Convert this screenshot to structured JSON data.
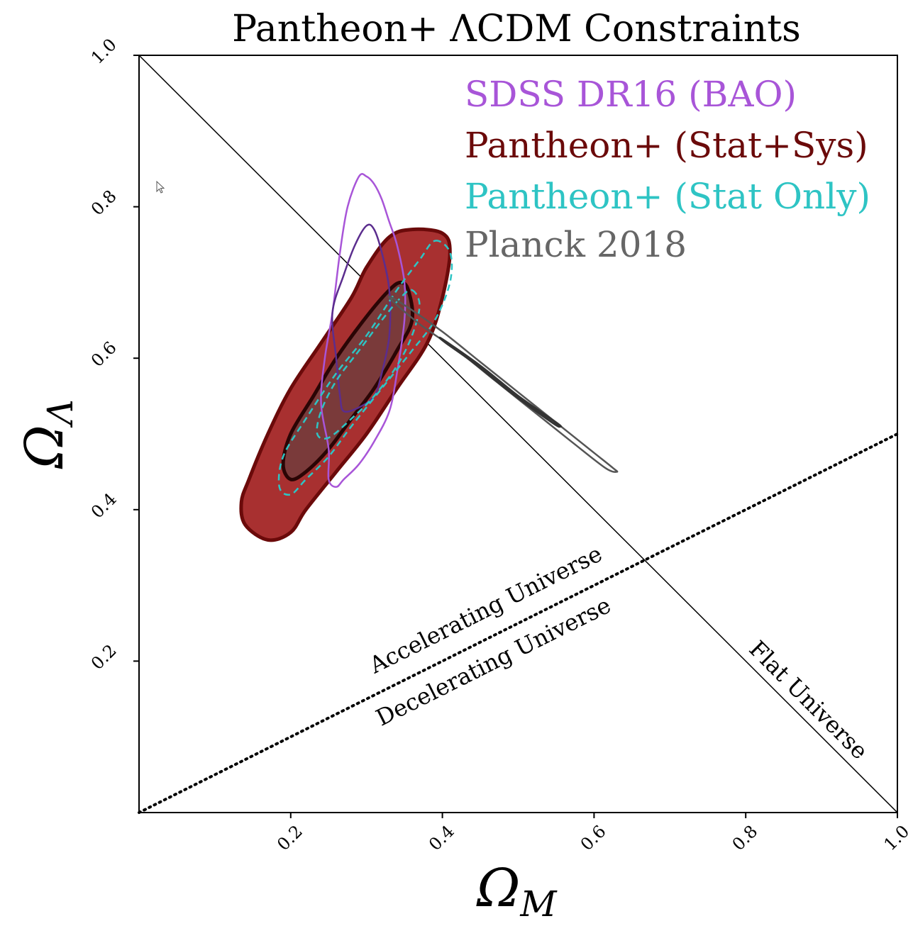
{
  "chart_data": {
    "type": "contour",
    "title": "Pantheon+ ΛCDM Constraints",
    "xlabel": "Ω",
    "xlabel_sub": "M",
    "ylabel": "Ω",
    "ylabel_sub": "Λ",
    "xlim": [
      0.0,
      1.0
    ],
    "ylim": [
      0.0,
      1.0
    ],
    "x_ticks": [
      "0.2",
      "0.4",
      "0.6",
      "0.8",
      "1.0"
    ],
    "y_ticks": [
      "0.2",
      "0.4",
      "0.6",
      "0.8",
      "1.0"
    ],
    "x_tick_values": [
      0.2,
      0.4,
      0.6,
      0.8,
      1.0
    ],
    "y_tick_values": [
      0.2,
      0.4,
      0.6,
      0.8,
      1.0
    ],
    "grid": false,
    "legend_position": "top-right",
    "series": [
      {
        "name": "SDSS DR16 (BAO)",
        "color": "#a855d8",
        "inner_color": "#5b2d8e",
        "style": "solid",
        "filled": false,
        "outer": [
          [
            0.29,
            0.84
          ],
          [
            0.3,
            0.84
          ],
          [
            0.31,
            0.83
          ],
          [
            0.32,
            0.81
          ],
          [
            0.33,
            0.78
          ],
          [
            0.34,
            0.75
          ],
          [
            0.35,
            0.7
          ],
          [
            0.35,
            0.65
          ],
          [
            0.34,
            0.58
          ],
          [
            0.33,
            0.53
          ],
          [
            0.31,
            0.49
          ],
          [
            0.29,
            0.46
          ],
          [
            0.27,
            0.44
          ],
          [
            0.26,
            0.43
          ],
          [
            0.25,
            0.44
          ],
          [
            0.25,
            0.48
          ],
          [
            0.24,
            0.54
          ],
          [
            0.245,
            0.6
          ],
          [
            0.255,
            0.66
          ],
          [
            0.265,
            0.74
          ],
          [
            0.275,
            0.8
          ]
        ],
        "inner": [
          [
            0.3,
            0.775
          ],
          [
            0.31,
            0.77
          ],
          [
            0.32,
            0.74
          ],
          [
            0.33,
            0.69
          ],
          [
            0.33,
            0.63
          ],
          [
            0.32,
            0.58
          ],
          [
            0.31,
            0.55
          ],
          [
            0.29,
            0.535
          ],
          [
            0.27,
            0.53
          ],
          [
            0.265,
            0.55
          ],
          [
            0.26,
            0.6
          ],
          [
            0.255,
            0.66
          ],
          [
            0.27,
            0.71
          ],
          [
            0.285,
            0.75
          ]
        ]
      },
      {
        "name": "Pantheon+ (Stat+Sys)",
        "color": "#6b0a0a",
        "fill_color": "#a83030",
        "inner_fill_color": "#7a3a3a",
        "style": "solid",
        "filled": true,
        "outer": [
          [
            0.33,
            0.76
          ],
          [
            0.36,
            0.77
          ],
          [
            0.4,
            0.765
          ],
          [
            0.41,
            0.74
          ],
          [
            0.4,
            0.68
          ],
          [
            0.38,
            0.62
          ],
          [
            0.34,
            0.56
          ],
          [
            0.3,
            0.5
          ],
          [
            0.26,
            0.45
          ],
          [
            0.22,
            0.4
          ],
          [
            0.2,
            0.37
          ],
          [
            0.17,
            0.36
          ],
          [
            0.14,
            0.38
          ],
          [
            0.135,
            0.41
          ],
          [
            0.145,
            0.44
          ],
          [
            0.17,
            0.5
          ],
          [
            0.2,
            0.56
          ],
          [
            0.24,
            0.62
          ],
          [
            0.28,
            0.68
          ],
          [
            0.3,
            0.72
          ]
        ],
        "inner": [
          [
            0.345,
            0.7
          ],
          [
            0.355,
            0.69
          ],
          [
            0.36,
            0.65
          ],
          [
            0.34,
            0.61
          ],
          [
            0.31,
            0.56
          ],
          [
            0.28,
            0.52
          ],
          [
            0.25,
            0.48
          ],
          [
            0.22,
            0.45
          ],
          [
            0.2,
            0.44
          ],
          [
            0.19,
            0.46
          ],
          [
            0.2,
            0.5
          ],
          [
            0.23,
            0.55
          ],
          [
            0.26,
            0.6
          ],
          [
            0.3,
            0.655
          ],
          [
            0.33,
            0.69
          ]
        ]
      },
      {
        "name": "Pantheon+ (Stat Only)",
        "color": "#2ec4c4",
        "style": "dashed",
        "filled": false,
        "outer": [
          [
            0.39,
            0.755
          ],
          [
            0.41,
            0.74
          ],
          [
            0.41,
            0.7
          ],
          [
            0.39,
            0.65
          ],
          [
            0.36,
            0.61
          ],
          [
            0.32,
            0.56
          ],
          [
            0.28,
            0.51
          ],
          [
            0.25,
            0.47
          ],
          [
            0.22,
            0.44
          ],
          [
            0.2,
            0.42
          ],
          [
            0.185,
            0.43
          ],
          [
            0.19,
            0.47
          ],
          [
            0.22,
            0.52
          ],
          [
            0.26,
            0.58
          ],
          [
            0.3,
            0.63
          ],
          [
            0.34,
            0.69
          ],
          [
            0.37,
            0.73
          ]
        ],
        "inner": [
          [
            0.36,
            0.69
          ],
          [
            0.37,
            0.67
          ],
          [
            0.36,
            0.63
          ],
          [
            0.34,
            0.59
          ],
          [
            0.31,
            0.55
          ],
          [
            0.28,
            0.52
          ],
          [
            0.25,
            0.495
          ],
          [
            0.235,
            0.5
          ],
          [
            0.24,
            0.53
          ],
          [
            0.26,
            0.57
          ],
          [
            0.29,
            0.61
          ],
          [
            0.32,
            0.65
          ],
          [
            0.345,
            0.68
          ]
        ]
      },
      {
        "name": "Planck 2018",
        "color": "#555555",
        "style": "solid",
        "filled": false,
        "outer": [
          [
            0.33,
            0.68
          ],
          [
            0.35,
            0.67
          ],
          [
            0.4,
            0.635
          ],
          [
            0.45,
            0.595
          ],
          [
            0.5,
            0.555
          ],
          [
            0.55,
            0.515
          ],
          [
            0.6,
            0.475
          ],
          [
            0.625,
            0.455
          ],
          [
            0.63,
            0.45
          ],
          [
            0.615,
            0.455
          ],
          [
            0.57,
            0.49
          ],
          [
            0.52,
            0.53
          ],
          [
            0.47,
            0.57
          ],
          [
            0.42,
            0.61
          ],
          [
            0.37,
            0.645
          ]
        ],
        "inner": [
          [
            0.4,
            0.625
          ],
          [
            0.45,
            0.59
          ],
          [
            0.5,
            0.55
          ],
          [
            0.55,
            0.515
          ],
          [
            0.555,
            0.51
          ],
          [
            0.545,
            0.515
          ],
          [
            0.49,
            0.555
          ],
          [
            0.44,
            0.595
          ],
          [
            0.405,
            0.62
          ]
        ]
      }
    ],
    "reference_lines": [
      {
        "name": "Flat Universe",
        "label": "Flat Universe",
        "points": [
          [
            0.0,
            1.0
          ],
          [
            1.0,
            0.0
          ]
        ],
        "style": "solid"
      },
      {
        "name": "acceleration-boundary",
        "label_above": "Accelerating Universe",
        "label_below": "Decelerating Universe",
        "points": [
          [
            0.0,
            0.0
          ],
          [
            1.0,
            0.5
          ]
        ],
        "style": "dotted"
      }
    ]
  }
}
